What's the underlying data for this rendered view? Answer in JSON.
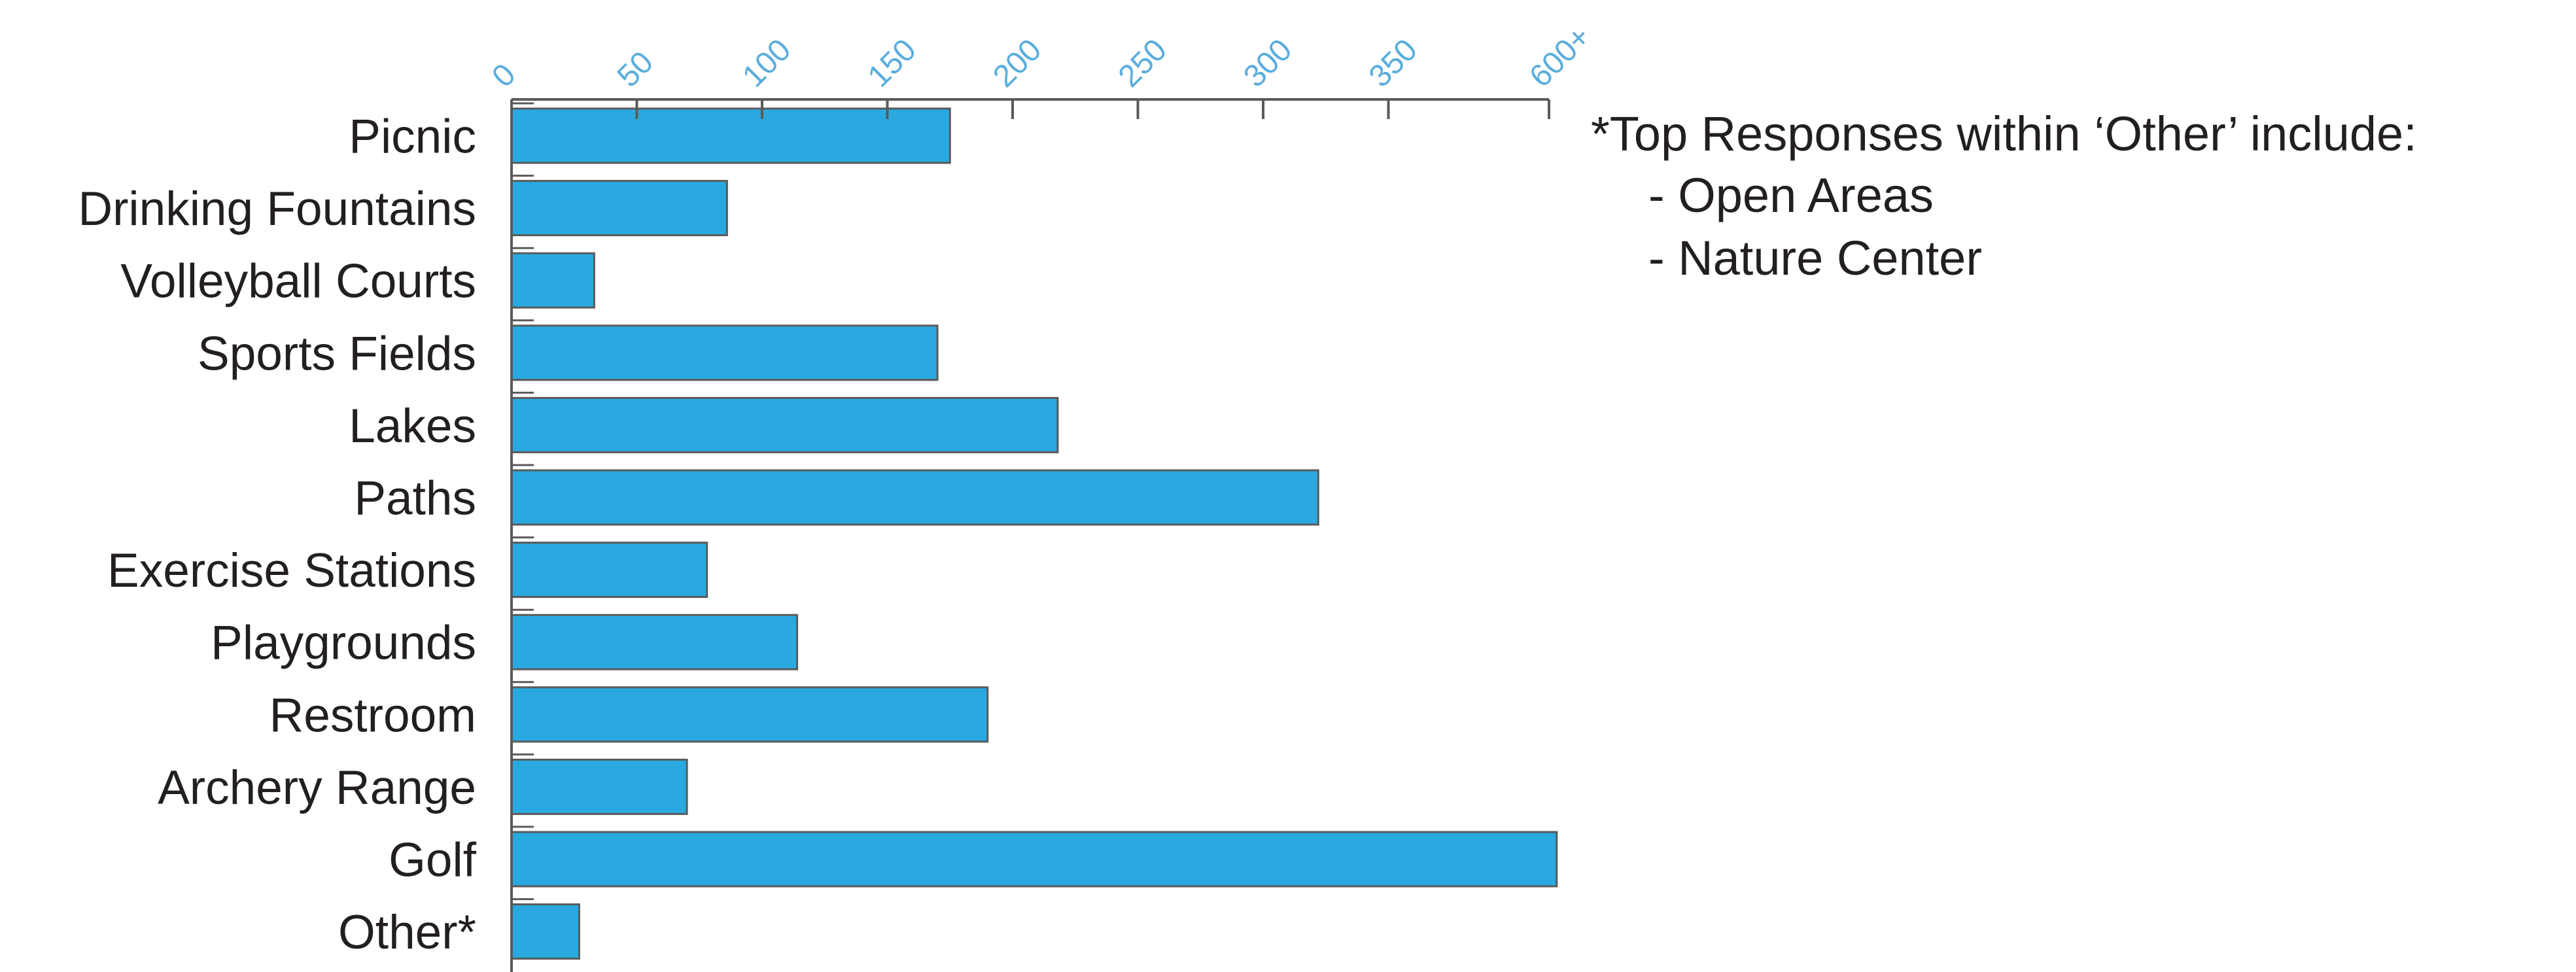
{
  "chart_data": {
    "type": "bar",
    "orientation": "horizontal",
    "categories": [
      "Picnic",
      "Drinking Fountains",
      "Volleyball Courts",
      "Sports Fields",
      "Lakes",
      "Paths",
      "Exercise Stations",
      "Playgrounds",
      "Restroom",
      "Archery Range",
      "Golf",
      "Other*"
    ],
    "values": [
      175,
      86,
      33,
      170,
      218,
      322,
      78,
      114,
      190,
      70,
      612,
      27
    ],
    "x_ticks": [
      "0",
      "50",
      "100",
      "150",
      "200",
      "250",
      "300",
      "350",
      "600+"
    ],
    "x_tick_values": [
      0,
      50,
      100,
      150,
      200,
      250,
      300,
      350,
      600
    ],
    "x_axis_position": "top",
    "grid": false,
    "title": "",
    "xlabel": "",
    "ylabel": ""
  },
  "note": {
    "heading": "*Top Responses within ‘Other’ include:",
    "items": [
      "- Open Areas",
      "- Nature Center"
    ]
  },
  "colors": {
    "bar_fill": "#29a9e0",
    "bar_stroke": "#5a5a5a",
    "axis": "#5a5a5a",
    "tick_text": "#5aaddc",
    "label_text": "#231f20"
  }
}
